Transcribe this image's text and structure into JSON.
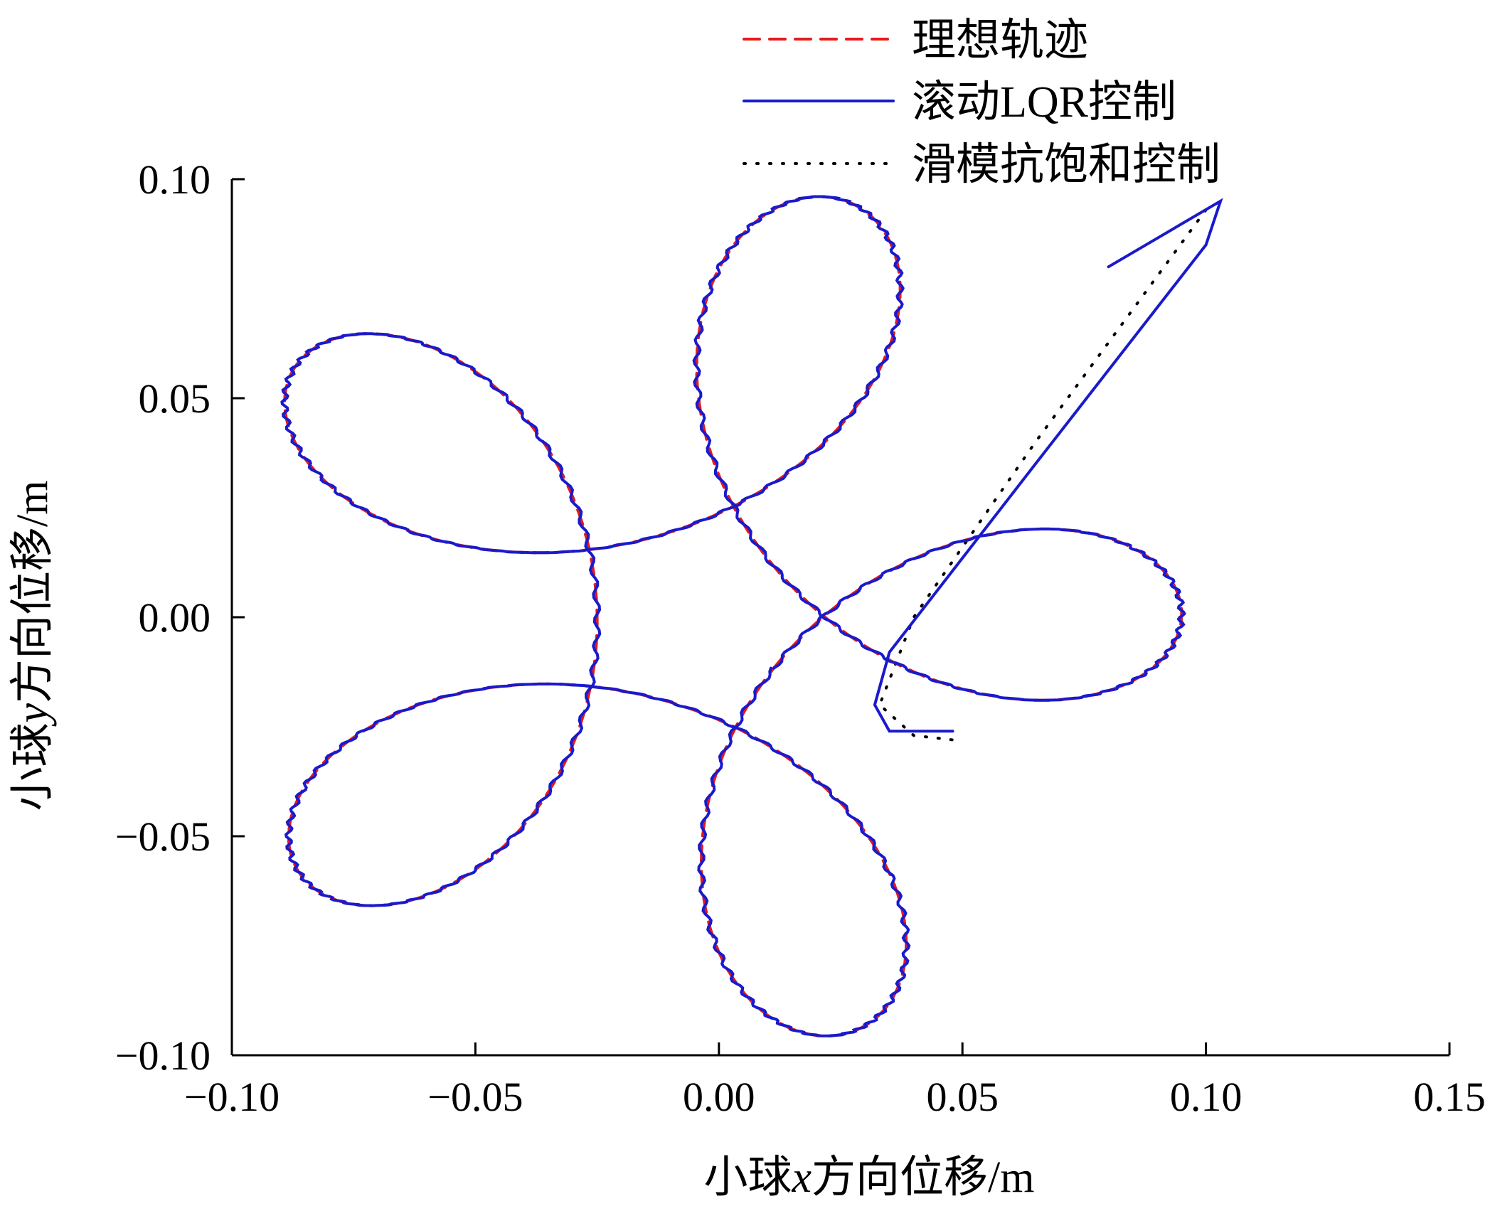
{
  "chart_data": {
    "type": "line",
    "xlabel_parts": [
      "小球",
      "x",
      "方向位移/m"
    ],
    "ylabel_parts": [
      "小球",
      "y",
      "方向位移/m"
    ],
    "xlim": [
      -0.1,
      0.15
    ],
    "ylim": [
      -0.1,
      0.1
    ],
    "xticks": [
      -0.1,
      -0.05,
      0.0,
      0.05,
      0.1,
      0.15
    ],
    "xtick_labels": [
      "−0.10",
      "−0.05",
      "0.00",
      "0.05",
      "0.10",
      "0.15"
    ],
    "yticks": [
      -0.1,
      -0.05,
      0.0,
      0.05,
      0.1
    ],
    "ytick_labels": [
      "−0.10",
      "−0.05",
      "0.00",
      "0.05",
      "0.10"
    ],
    "grid": false,
    "legend_position": "top-right",
    "trajectory": {
      "shape": "epicycloid-like rosette",
      "outer_radius_R": 0.09,
      "inner_radius_r": 0.03,
      "lobes": 5,
      "x_range": [
        -0.1,
        0.09
      ],
      "y_range": [
        -0.097,
        0.097
      ]
    },
    "series": [
      {
        "name": "理想轨迹",
        "style": "dashed",
        "color": "#e41a1c"
      },
      {
        "name": "滚动LQR控制",
        "style": "solid",
        "color": "#1a1acc",
        "transient_start": {
          "points": [
            [
              0.08,
              0.08
            ],
            [
              0.103,
              0.095
            ],
            [
              0.1,
              0.085
            ],
            [
              0.065,
              0.035
            ],
            [
              0.035,
              -0.008
            ],
            [
              0.032,
              -0.02
            ],
            [
              0.035,
              -0.026
            ],
            [
              0.048,
              -0.026
            ]
          ]
        }
      },
      {
        "name": "滑模抗饱和控制",
        "style": "dotted",
        "color": "#000000",
        "transient_start": {
          "points": [
            [
              0.1,
              0.093
            ],
            [
              0.065,
              0.04
            ],
            [
              0.04,
              0.0
            ],
            [
              0.033,
              -0.02
            ],
            [
              0.04,
              -0.027
            ],
            [
              0.048,
              -0.028
            ]
          ]
        }
      }
    ]
  }
}
